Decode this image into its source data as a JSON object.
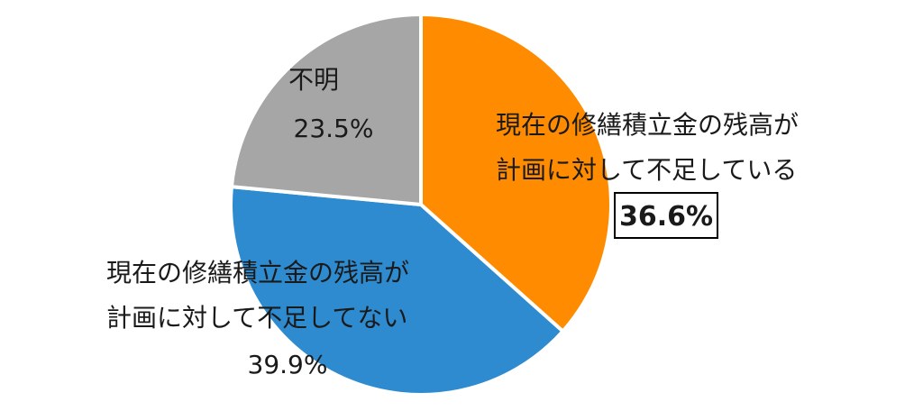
{
  "chart_data": {
    "type": "pie",
    "slices": [
      {
        "label_lines": [
          "現在の修繕積立金の残高が",
          "計画に対して不足している"
        ],
        "value": 36.6,
        "value_label": "36.6%",
        "color": "#ff8c00",
        "emphasized": true
      },
      {
        "label_lines": [
          "現在の修繕積立金の残高が",
          "計画に対して不足してない"
        ],
        "value": 39.9,
        "value_label": "39.9%",
        "color": "#2e8bd0",
        "emphasized": false
      },
      {
        "label_lines": [
          "不明"
        ],
        "value": 23.5,
        "value_label": "23.5%",
        "color": "#a6a6a6",
        "emphasized": false
      }
    ],
    "start_angle": "12 o'clock",
    "direction": "clockwise",
    "legend": "none"
  }
}
